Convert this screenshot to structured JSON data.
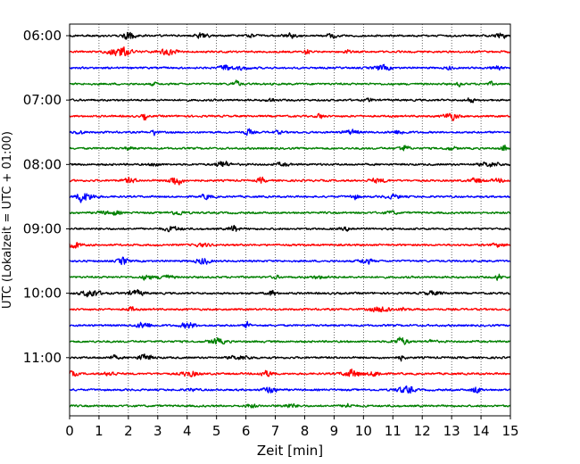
{
  "chart_data": {
    "type": "line",
    "title": "",
    "xlabel": "Zeit  [min]",
    "ylabel": "UTC (Lokalzeit = UTC + 01:00)",
    "xlim": [
      0,
      15
    ],
    "x_ticks": [
      "0",
      "1",
      "2",
      "3",
      "4",
      "5",
      "6",
      "7",
      "8",
      "9",
      "10",
      "11",
      "12",
      "13",
      "14",
      "15"
    ],
    "y_tick_labels": [
      "06:00",
      "07:00",
      "08:00",
      "09:00",
      "10:00",
      "11:00"
    ],
    "trace_interval_minutes": 15,
    "traces": [
      {
        "start": "06:00",
        "color": "#000000"
      },
      {
        "start": "06:15",
        "color": "#ff0000"
      },
      {
        "start": "06:30",
        "color": "#0000ff"
      },
      {
        "start": "06:45",
        "color": "#008000"
      },
      {
        "start": "07:00",
        "color": "#000000"
      },
      {
        "start": "07:15",
        "color": "#ff0000"
      },
      {
        "start": "07:30",
        "color": "#0000ff"
      },
      {
        "start": "07:45",
        "color": "#008000"
      },
      {
        "start": "08:00",
        "color": "#000000"
      },
      {
        "start": "08:15",
        "color": "#ff0000"
      },
      {
        "start": "08:30",
        "color": "#0000ff"
      },
      {
        "start": "08:45",
        "color": "#008000"
      },
      {
        "start": "09:00",
        "color": "#000000"
      },
      {
        "start": "09:15",
        "color": "#ff0000"
      },
      {
        "start": "09:30",
        "color": "#0000ff"
      },
      {
        "start": "09:45",
        "color": "#008000"
      },
      {
        "start": "10:00",
        "color": "#000000"
      },
      {
        "start": "10:15",
        "color": "#ff0000"
      },
      {
        "start": "10:30",
        "color": "#0000ff"
      },
      {
        "start": "10:45",
        "color": "#008000"
      },
      {
        "start": "11:00",
        "color": "#000000"
      },
      {
        "start": "11:15",
        "color": "#ff0000"
      },
      {
        "start": "11:30",
        "color": "#0000ff"
      },
      {
        "start": "11:45",
        "color": "#008000"
      }
    ],
    "grid": "vertical dotted",
    "legend": "none"
  }
}
